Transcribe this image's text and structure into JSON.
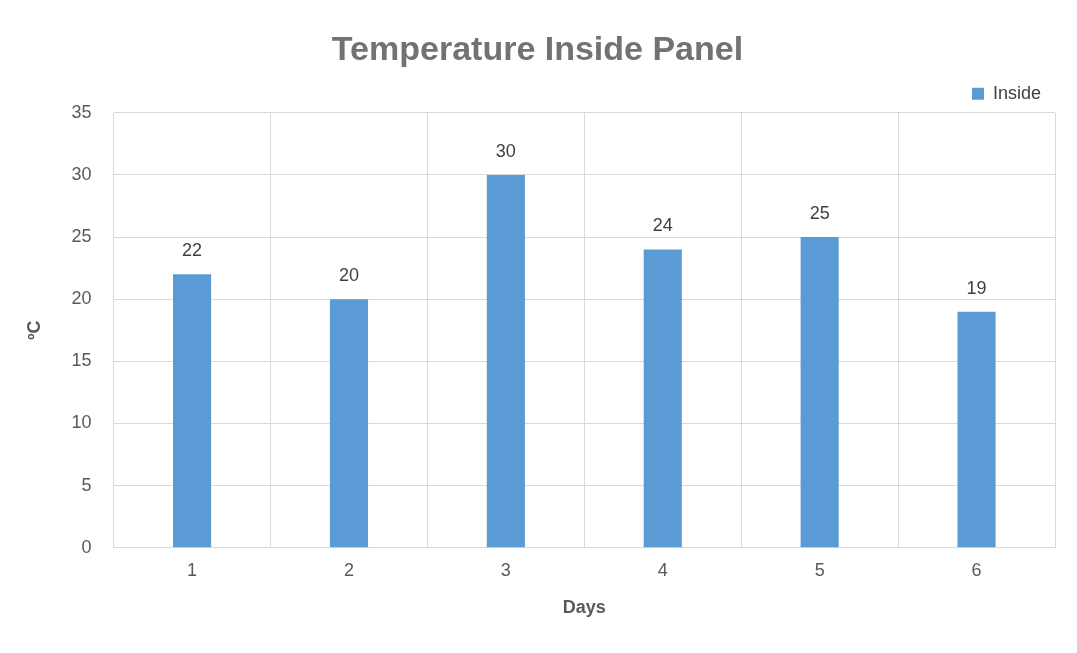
{
  "chart_data": {
    "type": "bar",
    "title": "Temperature Inside Panel",
    "xlabel": "Days",
    "ylabel": "ºC",
    "categories": [
      "1",
      "2",
      "3",
      "4",
      "5",
      "6"
    ],
    "series": [
      {
        "name": "Inside",
        "color": "#5b9bd5",
        "values": [
          22,
          20,
          30,
          24,
          25,
          19
        ]
      }
    ],
    "ylim": [
      0,
      35
    ],
    "yticks": [
      0,
      5,
      10,
      15,
      20,
      25,
      30,
      35
    ],
    "grid": true,
    "legend": "top right",
    "data_labels": true
  }
}
